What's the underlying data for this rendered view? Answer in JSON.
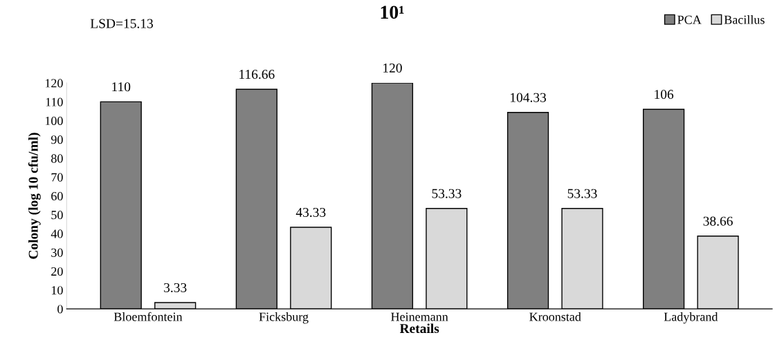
{
  "chart_data": {
    "type": "bar",
    "title": "10¹",
    "xlabel": "Retails",
    "ylabel": "Colony (log 10 cfu/ml)",
    "categories": [
      "Bloemfontein",
      "Ficksburg",
      "Heinemann",
      "Kroonstad",
      "Ladybrand"
    ],
    "series": [
      {
        "name": "PCA",
        "color": "#808080",
        "values": [
          110,
          116.66,
          120,
          104.33,
          106
        ]
      },
      {
        "name": "Bacillus",
        "color": "#d9d9d9",
        "values": [
          3.33,
          43.33,
          53.33,
          53.33,
          38.66
        ]
      }
    ],
    "ylim": [
      0,
      120
    ],
    "yticks": [
      0,
      10,
      20,
      30,
      40,
      50,
      60,
      70,
      80,
      90,
      100,
      110,
      120
    ],
    "data_labels": true,
    "grid": false,
    "legend": "top right",
    "annotations": [
      "LSD=15.13"
    ]
  }
}
